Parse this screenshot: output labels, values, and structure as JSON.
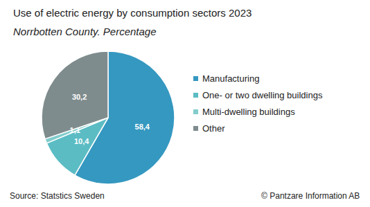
{
  "chart_data": {
    "type": "pie",
    "title": "Use of electric energy by consumption sectors 2023",
    "subtitle": "Norrbotten County. Percentage",
    "categories": [
      "Manufacturing",
      "One- or two dwelling buildings",
      "Multi-dwelling buildings",
      "Other"
    ],
    "values": [
      58.4,
      10.4,
      1.1,
      30.2
    ],
    "value_labels": [
      "58,4",
      "10,4",
      "1,1",
      "30,2"
    ],
    "colors": [
      "#3598c0",
      "#5bbcc4",
      "#82cdcc",
      "#7f8c8d"
    ],
    "data_labels": true,
    "legend": "right",
    "source": "Source: Statstics Sweden",
    "copyright": "© Pantzare Information AB"
  }
}
